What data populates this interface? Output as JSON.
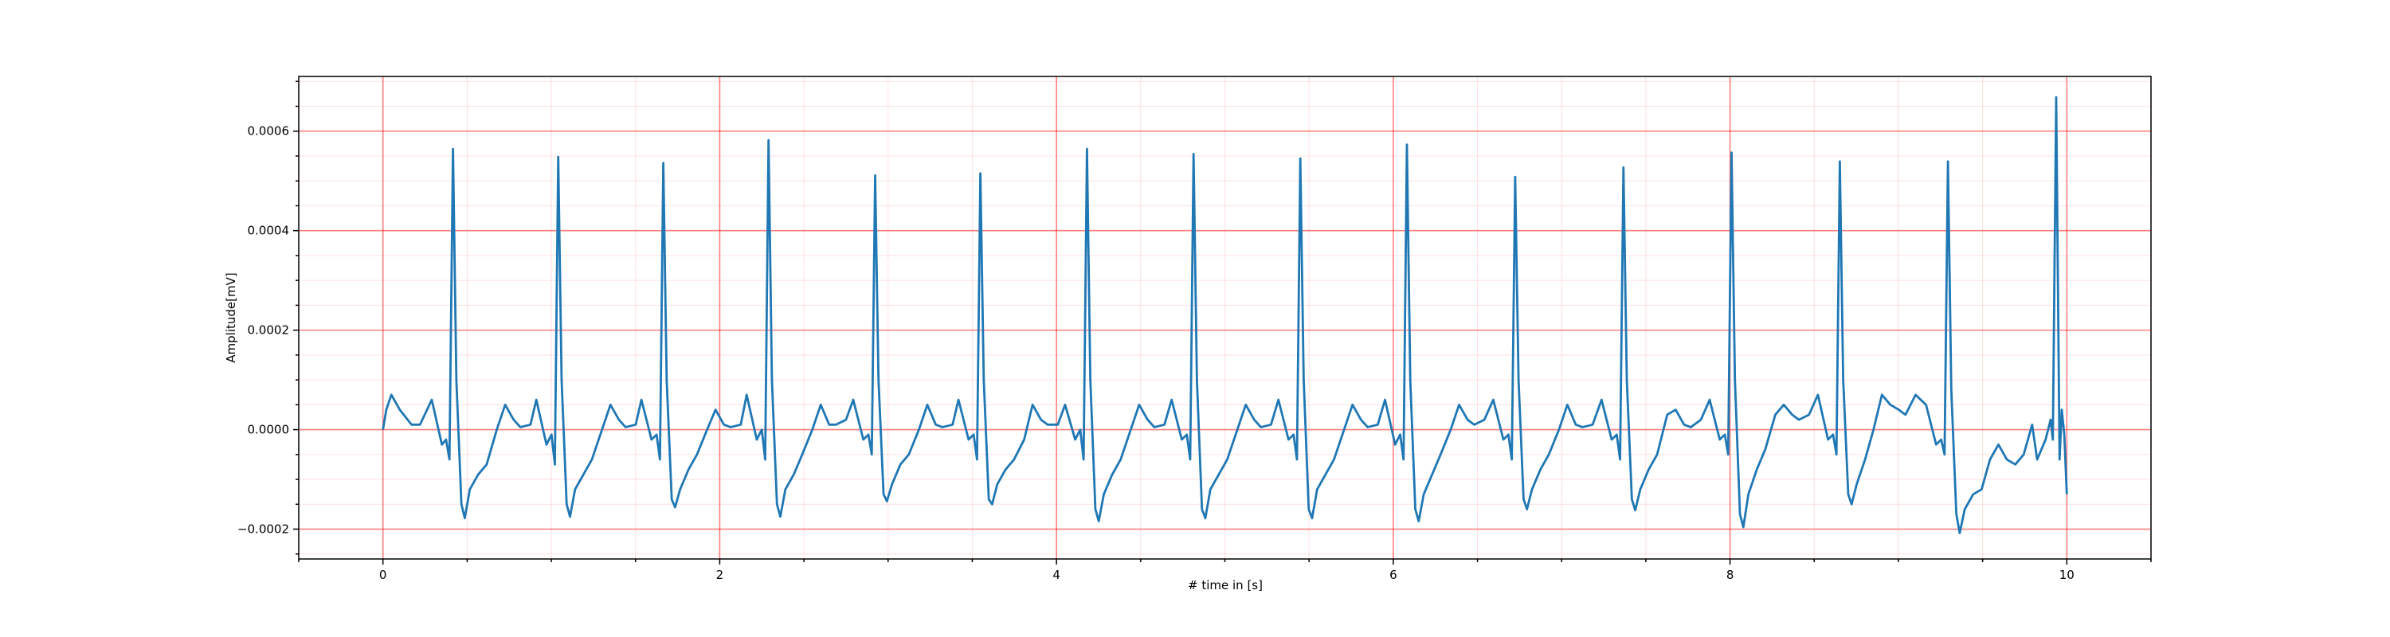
{
  "chart_data": {
    "type": "line",
    "xlabel": "# time in [s]",
    "ylabel": "Amplitude[mV]",
    "color": "#1f77b4",
    "xlim": [
      -0.5,
      10.5
    ],
    "ylim": [
      -0.00026,
      0.00071
    ],
    "xticks": [
      0,
      2,
      4,
      6,
      8,
      10
    ],
    "yticks": [
      {
        "value": -0.0002,
        "label": "−0.0002"
      },
      {
        "value": 0,
        "label": "0.0000"
      },
      {
        "value": 0.0002,
        "label": "0.0002"
      },
      {
        "value": 0.0004,
        "label": "0.0004"
      },
      {
        "value": 0.0006,
        "label": "0.0006"
      }
    ],
    "xminorticks": [
      -0.5,
      0.5,
      1,
      1.5,
      2.5,
      3,
      3.5,
      4.5,
      5,
      5.5,
      6.5,
      7,
      7.5,
      8.5,
      9,
      9.5,
      10.5
    ],
    "yminorticks": [
      -0.00025,
      -0.00015,
      -0.0001,
      -5e-05,
      5e-05,
      0.0001,
      0.00015,
      0.00025,
      0.0003,
      0.00035,
      0.00045,
      0.0005,
      0.00055,
      0.00065,
      0.0007
    ],
    "grid": true,
    "minor_grid": true,
    "x": [
      0,
      0.02,
      0.05,
      0.1,
      0.17,
      0.22,
      0.29,
      0.35,
      0.375,
      0.395,
      0.416,
      0.436,
      0.466,
      0.486,
      0.516,
      0.566,
      0.616,
      0.676,
      0.726,
      0.776,
      0.816,
      0.876,
      0.911,
      0.971,
      1.001,
      1.021,
      1.041,
      1.061,
      1.091,
      1.111,
      1.141,
      1.191,
      1.241,
      1.301,
      1.351,
      1.401,
      1.441,
      1.501,
      1.535,
      1.595,
      1.625,
      1.645,
      1.665,
      1.685,
      1.715,
      1.735,
      1.765,
      1.815,
      1.865,
      1.925,
      1.975,
      2.025,
      2.065,
      2.125,
      2.16,
      2.22,
      2.25,
      2.27,
      2.29,
      2.31,
      2.34,
      2.36,
      2.39,
      2.44,
      2.49,
      2.55,
      2.6,
      2.65,
      2.69,
      2.75,
      2.793,
      2.853,
      2.883,
      2.903,
      2.923,
      2.943,
      2.973,
      2.993,
      3.023,
      3.073,
      3.123,
      3.183,
      3.233,
      3.283,
      3.323,
      3.383,
      3.418,
      3.478,
      3.508,
      3.528,
      3.548,
      3.568,
      3.598,
      3.618,
      3.648,
      3.698,
      3.748,
      3.808,
      3.858,
      3.908,
      3.948,
      4.008,
      4.051,
      4.111,
      4.141,
      4.161,
      4.181,
      4.201,
      4.231,
      4.251,
      4.281,
      4.331,
      4.381,
      4.441,
      4.491,
      4.541,
      4.581,
      4.641,
      4.684,
      4.744,
      4.774,
      4.794,
      4.814,
      4.834,
      4.864,
      4.884,
      4.914,
      4.964,
      5.014,
      5.074,
      5.124,
      5.174,
      5.214,
      5.274,
      5.318,
      5.378,
      5.408,
      5.428,
      5.448,
      5.468,
      5.498,
      5.518,
      5.548,
      5.598,
      5.648,
      5.708,
      5.758,
      5.808,
      5.848,
      5.908,
      5.951,
      6.011,
      6.041,
      6.061,
      6.081,
      6.101,
      6.131,
      6.151,
      6.181,
      6.231,
      6.281,
      6.341,
      6.391,
      6.441,
      6.481,
      6.541,
      6.594,
      6.654,
      6.684,
      6.704,
      6.724,
      6.744,
      6.774,
      6.794,
      6.824,
      6.874,
      6.924,
      6.984,
      7.034,
      7.084,
      7.124,
      7.184,
      7.237,
      7.297,
      7.327,
      7.347,
      7.367,
      7.387,
      7.417,
      7.437,
      7.467,
      7.517,
      7.567,
      7.627,
      7.677,
      7.727,
      7.767,
      7.827,
      7.879,
      7.939,
      7.969,
      7.989,
      8.009,
      8.029,
      8.059,
      8.079,
      8.109,
      8.159,
      8.209,
      8.269,
      8.319,
      8.369,
      8.409,
      8.469,
      8.522,
      8.582,
      8.612,
      8.632,
      8.652,
      8.672,
      8.702,
      8.722,
      8.752,
      8.802,
      8.852,
      8.902,
      8.952,
      9.002,
      9.042,
      9.102,
      9.164,
      9.224,
      9.254,
      9.274,
      9.294,
      9.314,
      9.344,
      9.364,
      9.394,
      9.444,
      9.494,
      9.544,
      9.594,
      9.644,
      9.694,
      9.744,
      9.794,
      9.824,
      9.874,
      9.904,
      9.917,
      9.937,
      9.957,
      9.97,
      9.985,
      10.0
    ],
    "values": [
      0,
      4e-05,
      7e-05,
      4e-05,
      1e-05,
      1e-05,
      6e-05,
      -3e-05,
      -2e-05,
      -6e-05,
      0.000564,
      0.0001,
      -0.00015,
      -0.000178,
      -0.00012,
      -9e-05,
      -7e-05,
      0,
      5e-05,
      2e-05,
      5e-06,
      1e-05,
      6e-05,
      -3e-05,
      -1e-05,
      -7e-05,
      0.000548,
      0.0001,
      -0.00015,
      -0.000175,
      -0.00012,
      -9e-05,
      -6e-05,
      0,
      5e-05,
      2e-05,
      5e-06,
      1e-05,
      6e-05,
      -2e-05,
      -1e-05,
      -6e-05,
      0.000536,
      0.0001,
      -0.00014,
      -0.000156,
      -0.00012,
      -8e-05,
      -5e-05,
      0,
      4e-05,
      1e-05,
      5e-06,
      1e-05,
      7e-05,
      -2e-05,
      0,
      -6e-05,
      0.000582,
      0.0001,
      -0.00015,
      -0.000175,
      -0.00012,
      -9e-05,
      -5e-05,
      0,
      5e-05,
      1e-05,
      1e-05,
      2e-05,
      6e-05,
      -2e-05,
      -1e-05,
      -5e-05,
      0.000511,
      0.0001,
      -0.00013,
      -0.000144,
      -0.00011,
      -7e-05,
      -5e-05,
      0,
      5e-05,
      1e-05,
      5e-06,
      1e-05,
      6e-05,
      -2e-05,
      -1e-05,
      -6e-05,
      0.000515,
      0.0001,
      -0.00014,
      -0.00015,
      -0.00011,
      -8e-05,
      -6e-05,
      -2e-05,
      5e-05,
      2e-05,
      1e-05,
      1e-05,
      5e-05,
      -2e-05,
      0,
      -6e-05,
      0.000564,
      0.0001,
      -0.00016,
      -0.000184,
      -0.00013,
      -9e-05,
      -6e-05,
      0,
      5e-05,
      2e-05,
      5e-06,
      1e-05,
      6e-05,
      -2e-05,
      -1e-05,
      -6e-05,
      0.000554,
      0.0001,
      -0.00016,
      -0.000178,
      -0.00012,
      -9e-05,
      -6e-05,
      0,
      5e-05,
      2e-05,
      5e-06,
      1e-05,
      6e-05,
      -2e-05,
      -1e-05,
      -6e-05,
      0.000545,
      0.0001,
      -0.00016,
      -0.000178,
      -0.00012,
      -9e-05,
      -6e-05,
      0,
      5e-05,
      2e-05,
      5e-06,
      1e-05,
      6e-05,
      -3e-05,
      -1e-05,
      -6e-05,
      0.000573,
      0.0001,
      -0.00016,
      -0.000184,
      -0.00013,
      -9e-05,
      -5e-05,
      0,
      5e-05,
      2e-05,
      1e-05,
      2e-05,
      6e-05,
      -2e-05,
      -1e-05,
      -6e-05,
      0.000508,
      0.0001,
      -0.00014,
      -0.00016,
      -0.00012,
      -8e-05,
      -5e-05,
      0,
      5e-05,
      1e-05,
      5e-06,
      1e-05,
      6e-05,
      -2e-05,
      -1e-05,
      -6e-05,
      0.000527,
      0.0001,
      -0.00014,
      -0.000162,
      -0.00012,
      -8e-05,
      -5e-05,
      3e-05,
      4e-05,
      1e-05,
      5e-06,
      2e-05,
      6e-05,
      -2e-05,
      -1e-05,
      -5e-05,
      0.000557,
      0.0001,
      -0.00017,
      -0.000196,
      -0.00013,
      -8e-05,
      -4e-05,
      3e-05,
      5e-05,
      3e-05,
      2e-05,
      3e-05,
      7e-05,
      -2e-05,
      -1e-05,
      -5e-05,
      0.000539,
      0.0001,
      -0.00013,
      -0.00015,
      -0.00011,
      -6e-05,
      0,
      7e-05,
      5e-05,
      4e-05,
      3e-05,
      7e-05,
      5e-05,
      -3e-05,
      -2e-05,
      -5e-05,
      0.000539,
      8e-05,
      -0.00017,
      -0.000208,
      -0.00016,
      -0.00013,
      -0.00012,
      -6e-05,
      -3e-05,
      -6e-05,
      -7e-05,
      -5e-05,
      1e-05,
      -6e-05,
      -2e-05,
      2e-05,
      -2e-05,
      0.000668,
      -6e-05,
      4e-05,
      -1e-05,
      -0.00013
    ]
  }
}
